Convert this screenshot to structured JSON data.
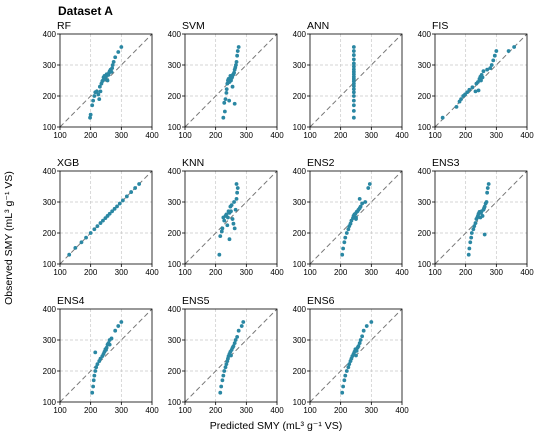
{
  "figure_title": "Dataset A",
  "xlabel": "Predicted SMY (mL³ g⁻¹ VS)",
  "ylabel": "Observed SMY (mL³ g⁻¹ VS)",
  "colors": {
    "points": "#2a87a3",
    "diagonal": "#777777",
    "grid": "#c8c8c8"
  },
  "chart_data": [
    {
      "type": "scatter",
      "title": "RF",
      "xlim": [
        100,
        400
      ],
      "ylim": [
        100,
        400
      ],
      "xticks": [
        100,
        200,
        300,
        400
      ],
      "yticks": [
        100,
        200,
        300,
        400
      ],
      "grid": true,
      "points": [
        [
          198,
          130
        ],
        [
          200,
          140
        ],
        [
          205,
          170
        ],
        [
          208,
          185
        ],
        [
          212,
          200
        ],
        [
          215,
          212
        ],
        [
          220,
          215
        ],
        [
          225,
          205
        ],
        [
          228,
          190
        ],
        [
          230,
          230
        ],
        [
          232,
          215
        ],
        [
          235,
          240
        ],
        [
          238,
          248
        ],
        [
          240,
          250
        ],
        [
          242,
          260
        ],
        [
          245,
          265
        ],
        [
          248,
          255
        ],
        [
          250,
          262
        ],
        [
          252,
          270
        ],
        [
          255,
          250
        ],
        [
          258,
          268
        ],
        [
          260,
          275
        ],
        [
          262,
          280
        ],
        [
          265,
          285
        ],
        [
          268,
          278
        ],
        [
          270,
          290
        ],
        [
          272,
          300
        ],
        [
          275,
          310
        ],
        [
          280,
          325
        ],
        [
          290,
          342
        ],
        [
          300,
          358
        ]
      ]
    },
    {
      "type": "scatter",
      "title": "SVM",
      "xlim": [
        100,
        400
      ],
      "ylim": [
        100,
        400
      ],
      "xticks": [
        100,
        200,
        300,
        400
      ],
      "yticks": [
        100,
        200,
        300,
        400
      ],
      "grid": true,
      "points": [
        [
          225,
          130
        ],
        [
          230,
          150
        ],
        [
          228,
          178
        ],
        [
          232,
          190
        ],
        [
          235,
          210
        ],
        [
          236,
          222
        ],
        [
          238,
          240
        ],
        [
          240,
          250
        ],
        [
          242,
          255
        ],
        [
          244,
          185
        ],
        [
          245,
          245
        ],
        [
          248,
          265
        ],
        [
          250,
          250
        ],
        [
          252,
          258
        ],
        [
          254,
          262
        ],
        [
          256,
          268
        ],
        [
          258,
          270
        ],
        [
          260,
          275
        ],
        [
          262,
          285
        ],
        [
          264,
          292
        ],
        [
          266,
          300
        ],
        [
          268,
          310
        ],
        [
          270,
          330
        ],
        [
          272,
          345
        ],
        [
          275,
          358
        ],
        [
          262,
          175
        ],
        [
          255,
          230
        ]
      ]
    },
    {
      "type": "scatter",
      "title": "ANN",
      "xlim": [
        100,
        400
      ],
      "ylim": [
        100,
        400
      ],
      "xticks": [
        100,
        200,
        300,
        400
      ],
      "yticks": [
        100,
        200,
        300,
        400
      ],
      "grid": true,
      "points": [
        [
          243,
          130
        ],
        [
          243,
          152
        ],
        [
          243,
          170
        ],
        [
          243,
          185
        ],
        [
          243,
          200
        ],
        [
          243,
          212
        ],
        [
          243,
          222
        ],
        [
          243,
          232
        ],
        [
          243,
          240
        ],
        [
          243,
          248
        ],
        [
          243,
          255
        ],
        [
          243,
          262
        ],
        [
          243,
          270
        ],
        [
          243,
          278
        ],
        [
          243,
          286
        ],
        [
          243,
          295
        ],
        [
          243,
          305
        ],
        [
          243,
          318
        ],
        [
          243,
          332
        ],
        [
          243,
          345
        ],
        [
          243,
          358
        ]
      ]
    },
    {
      "type": "scatter",
      "title": "FIS",
      "xlim": [
        100,
        400
      ],
      "ylim": [
        100,
        400
      ],
      "xticks": [
        100,
        200,
        300,
        400
      ],
      "yticks": [
        100,
        200,
        300,
        400
      ],
      "grid": true,
      "points": [
        [
          125,
          130
        ],
        [
          170,
          165
        ],
        [
          180,
          182
        ],
        [
          185,
          190
        ],
        [
          192,
          200
        ],
        [
          198,
          205
        ],
        [
          205,
          212
        ],
        [
          212,
          220
        ],
        [
          222,
          228
        ],
        [
          232,
          215
        ],
        [
          235,
          240
        ],
        [
          240,
          245
        ],
        [
          242,
          218
        ],
        [
          245,
          255
        ],
        [
          248,
          262
        ],
        [
          250,
          250
        ],
        [
          252,
          268
        ],
        [
          255,
          260
        ],
        [
          258,
          280
        ],
        [
          270,
          285
        ],
        [
          280,
          290
        ],
        [
          285,
          300
        ],
        [
          290,
          315
        ],
        [
          295,
          330
        ],
        [
          300,
          345
        ],
        [
          340,
          345
        ],
        [
          358,
          358
        ]
      ]
    },
    {
      "type": "scatter",
      "title": "XGB",
      "xlim": [
        100,
        400
      ],
      "ylim": [
        100,
        400
      ],
      "xticks": [
        100,
        200,
        300,
        400
      ],
      "yticks": [
        100,
        200,
        300,
        400
      ],
      "grid": true,
      "points": [
        [
          130,
          130
        ],
        [
          150,
          152
        ],
        [
          170,
          170
        ],
        [
          185,
          185
        ],
        [
          200,
          200
        ],
        [
          212,
          212
        ],
        [
          222,
          222
        ],
        [
          232,
          232
        ],
        [
          240,
          240
        ],
        [
          248,
          248
        ],
        [
          255,
          255
        ],
        [
          262,
          262
        ],
        [
          270,
          270
        ],
        [
          278,
          278
        ],
        [
          286,
          286
        ],
        [
          295,
          295
        ],
        [
          305,
          305
        ],
        [
          318,
          318
        ],
        [
          332,
          332
        ],
        [
          345,
          345
        ],
        [
          358,
          358
        ]
      ]
    },
    {
      "type": "scatter",
      "title": "KNN",
      "xlim": [
        100,
        400
      ],
      "ylim": [
        100,
        400
      ],
      "xticks": [
        100,
        200,
        300,
        400
      ],
      "yticks": [
        100,
        200,
        300,
        400
      ],
      "grid": true,
      "points": [
        [
          212,
          130
        ],
        [
          215,
          190
        ],
        [
          220,
          205
        ],
        [
          222,
          215
        ],
        [
          225,
          250
        ],
        [
          228,
          240
        ],
        [
          232,
          255
        ],
        [
          235,
          260
        ],
        [
          238,
          225
        ],
        [
          240,
          250
        ],
        [
          242,
          270
        ],
        [
          245,
          265
        ],
        [
          248,
          285
        ],
        [
          250,
          270
        ],
        [
          252,
          290
        ],
        [
          255,
          245
        ],
        [
          258,
          230
        ],
        [
          260,
          300
        ],
        [
          262,
          215
        ],
        [
          265,
          275
        ],
        [
          268,
          310
        ],
        [
          270,
          330
        ],
        [
          272,
          345
        ],
        [
          268,
          358
        ],
        [
          245,
          180
        ]
      ]
    },
    {
      "type": "scatter",
      "title": "ENS2",
      "xlim": [
        100,
        400
      ],
      "ylim": [
        100,
        400
      ],
      "xticks": [
        100,
        200,
        300,
        400
      ],
      "yticks": [
        100,
        200,
        300,
        400
      ],
      "grid": true,
      "points": [
        [
          205,
          130
        ],
        [
          208,
          150
        ],
        [
          212,
          170
        ],
        [
          215,
          185
        ],
        [
          220,
          200
        ],
        [
          225,
          212
        ],
        [
          228,
          222
        ],
        [
          232,
          230
        ],
        [
          235,
          240
        ],
        [
          240,
          248
        ],
        [
          242,
          255
        ],
        [
          245,
          260
        ],
        [
          248,
          262
        ],
        [
          250,
          250
        ],
        [
          252,
          268
        ],
        [
          255,
          270
        ],
        [
          258,
          275
        ],
        [
          262,
          280
        ],
        [
          265,
          285
        ],
        [
          270,
          295
        ],
        [
          280,
          300
        ],
        [
          290,
          345
        ],
        [
          295,
          358
        ],
        [
          262,
          310
        ],
        [
          250,
          245
        ]
      ]
    },
    {
      "type": "scatter",
      "title": "ENS3",
      "xlim": [
        100,
        400
      ],
      "ylim": [
        100,
        400
      ],
      "xticks": [
        100,
        200,
        300,
        400
      ],
      "yticks": [
        100,
        200,
        300,
        400
      ],
      "grid": true,
      "points": [
        [
          210,
          130
        ],
        [
          212,
          150
        ],
        [
          215,
          170
        ],
        [
          218,
          185
        ],
        [
          220,
          200
        ],
        [
          225,
          212
        ],
        [
          228,
          222
        ],
        [
          232,
          232
        ],
        [
          235,
          245
        ],
        [
          238,
          250
        ],
        [
          240,
          255
        ],
        [
          242,
          262
        ],
        [
          245,
          268
        ],
        [
          248,
          250
        ],
        [
          250,
          265
        ],
        [
          252,
          270
        ],
        [
          255,
          255
        ],
        [
          258,
          275
        ],
        [
          260,
          280
        ],
        [
          262,
          285
        ],
        [
          265,
          295
        ],
        [
          268,
          300
        ],
        [
          270,
          330
        ],
        [
          272,
          345
        ],
        [
          275,
          358
        ],
        [
          262,
          195
        ]
      ]
    },
    {
      "type": "scatter",
      "title": "ENS4",
      "xlim": [
        100,
        400
      ],
      "ylim": [
        100,
        400
      ],
      "xticks": [
        100,
        200,
        300,
        400
      ],
      "yticks": [
        100,
        200,
        300,
        400
      ],
      "grid": true,
      "points": [
        [
          205,
          130
        ],
        [
          208,
          150
        ],
        [
          210,
          170
        ],
        [
          212,
          185
        ],
        [
          215,
          200
        ],
        [
          218,
          212
        ],
        [
          222,
          222
        ],
        [
          228,
          232
        ],
        [
          232,
          240
        ],
        [
          238,
          248
        ],
        [
          242,
          255
        ],
        [
          245,
          262
        ],
        [
          248,
          270
        ],
        [
          250,
          268
        ],
        [
          252,
          275
        ],
        [
          255,
          285
        ],
        [
          258,
          290
        ],
        [
          262,
          300
        ],
        [
          268,
          305
        ],
        [
          280,
          330
        ],
        [
          290,
          345
        ],
        [
          300,
          358
        ],
        [
          215,
          260
        ],
        [
          262,
          285
        ]
      ]
    },
    {
      "type": "scatter",
      "title": "ENS5",
      "xlim": [
        100,
        400
      ],
      "ylim": [
        100,
        400
      ],
      "xticks": [
        100,
        200,
        300,
        400
      ],
      "yticks": [
        100,
        200,
        300,
        400
      ],
      "grid": true,
      "points": [
        [
          215,
          130
        ],
        [
          218,
          150
        ],
        [
          222,
          170
        ],
        [
          225,
          185
        ],
        [
          228,
          200
        ],
        [
          232,
          212
        ],
        [
          235,
          222
        ],
        [
          238,
          232
        ],
        [
          240,
          240
        ],
        [
          242,
          248
        ],
        [
          245,
          255
        ],
        [
          248,
          262
        ],
        [
          250,
          250
        ],
        [
          252,
          268
        ],
        [
          255,
          275
        ],
        [
          258,
          280
        ],
        [
          262,
          290
        ],
        [
          265,
          300
        ],
        [
          270,
          310
        ],
        [
          275,
          330
        ],
        [
          285,
          345
        ],
        [
          290,
          358
        ]
      ]
    },
    {
      "type": "scatter",
      "title": "ENS6",
      "xlim": [
        100,
        400
      ],
      "ylim": [
        100,
        400
      ],
      "xticks": [
        100,
        200,
        300,
        400
      ],
      "yticks": [
        100,
        200,
        300,
        400
      ],
      "grid": true,
      "points": [
        [
          205,
          130
        ],
        [
          208,
          150
        ],
        [
          212,
          170
        ],
        [
          215,
          185
        ],
        [
          220,
          200
        ],
        [
          225,
          212
        ],
        [
          228,
          222
        ],
        [
          232,
          232
        ],
        [
          235,
          240
        ],
        [
          238,
          248
        ],
        [
          242,
          255
        ],
        [
          245,
          262
        ],
        [
          248,
          270
        ],
        [
          250,
          250
        ],
        [
          252,
          265
        ],
        [
          255,
          275
        ],
        [
          258,
          280
        ],
        [
          262,
          290
        ],
        [
          265,
          300
        ],
        [
          270,
          312
        ],
        [
          275,
          330
        ],
        [
          285,
          345
        ],
        [
          300,
          358
        ]
      ]
    }
  ]
}
